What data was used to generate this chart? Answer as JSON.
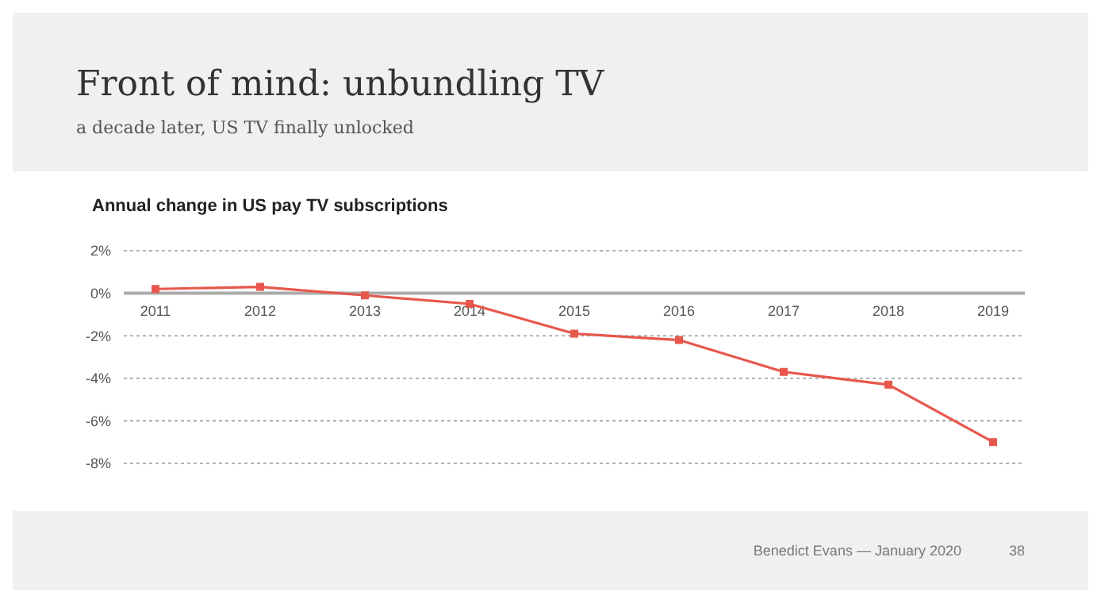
{
  "chart_data": {
    "type": "line",
    "title": "Front of mind: unbundling TV",
    "subtitle": "a decade later, US TV finally unlocked",
    "ylabel": "Annual change in US pay TV subscriptions",
    "categories": [
      "2011",
      "2012",
      "2013",
      "2014",
      "2015",
      "2016",
      "2017",
      "2018",
      "2019"
    ],
    "series": [
      {
        "color": "#e8574c",
        "values": [
          0.2,
          0.3,
          -0.1,
          -0.5,
          -1.9,
          -2.2,
          -3.7,
          -4.3,
          -7.0
        ]
      }
    ],
    "ylim": [
      -8,
      2
    ],
    "yticks": [
      {
        "value": 2,
        "label": "2%"
      },
      {
        "value": 0,
        "label": "0%"
      },
      {
        "value": -2,
        "label": "-2%"
      },
      {
        "value": -4,
        "label": "-4%"
      },
      {
        "value": -6,
        "label": "-6%"
      },
      {
        "value": -8,
        "label": "-8%"
      }
    ],
    "grid": "y",
    "marker": "square",
    "line_style": "solid",
    "annotations": [
      "Benedict Evans — January 2020",
      "38"
    ]
  }
}
